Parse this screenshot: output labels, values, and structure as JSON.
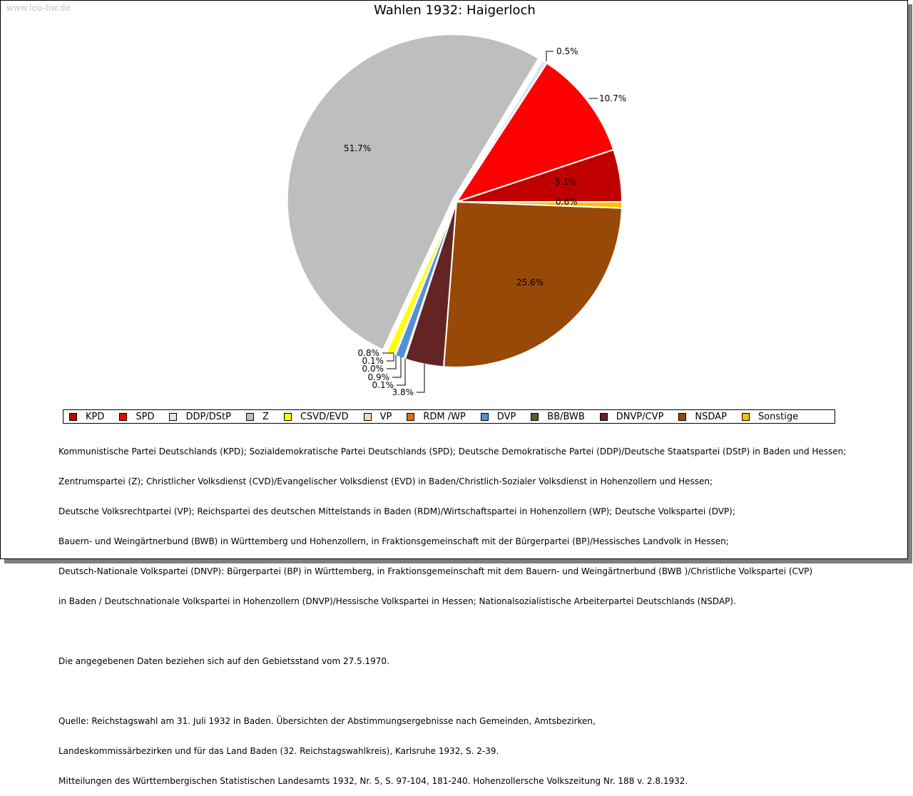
{
  "watermark": "www.leo-bw.de",
  "chart_data": {
    "type": "pie",
    "title": "Wahlen 1932: Haigerloch",
    "categories": [
      "KPD",
      "SPD",
      "DDP/DStP",
      "Z",
      "CSVD/EVD",
      "VP",
      "RDM /WP",
      "DVP",
      "BB/BWB",
      "DNVP/CVP",
      "NSDAP",
      "Sonstige"
    ],
    "values": [
      5.1,
      10.7,
      0.5,
      51.7,
      0.8,
      0.1,
      0.0,
      0.9,
      0.1,
      3.8,
      25.6,
      0.6
    ],
    "labels": [
      "5.1%",
      "10.7%",
      "0.5%",
      "51.7%",
      "0.8%",
      "0.1%",
      "0.0%",
      "0.9%",
      "0.1%",
      "3.8%",
      "25.6%",
      "0.6%"
    ],
    "colors": [
      "#c00000",
      "#ff0000",
      "#dce6f2",
      "#bebebe",
      "#ffff00",
      "#fcd5b5",
      "#e36c0a",
      "#558ed5",
      "#4f6228",
      "#632523",
      "#984807",
      "#ffc000"
    ],
    "legend_position": "bottom",
    "exploded": [
      "Z"
    ]
  },
  "notes": {
    "parties": [
      "Kommunistische Partei Deutschlands (KPD); Sozialdemokratische Partei Deutschlands (SPD); Deutsche Demokratische Partei (DDP)/Deutsche Staatspartei (DStP) in Baden und Hessen;",
      "Zentrumspartei (Z); Christlicher Volksdienst (CVD)/Evangelischer Volksdienst (EVD) in Baden/Christlich-Sozialer Volksdienst in Hohenzollern und Hessen;",
      "Deutsche Volksrechtpartei (VP); Reichspartei des deutschen Mittelstands in Baden (RDM)/Wirtschaftspartei in Hohenzollern (WP); Deutsche Volkspartei (DVP);",
      "Bauern- und Weingärtnerbund (BWB) in Württemberg und Hohenzollern, in Fraktionsgemeinschaft mit der Bürgerpartei (BP)/Hessisches Landvolk in Hessen;",
      "Deutsch-Nationale Volkspartei (DNVP): Bürgerpartei (BP) in Württemberg, in Fraktionsgemeinschaft mit dem Bauern- und Weingärtnerbund (BWB )/Christliche Volkspartei (CVP)",
      "in Baden / Deutschnationale Volkspartei in Hohenzollern (DNVP)/Hessische Volkspartei in Hessen; Nationalsozialistische Arbeiterpartei Deutschlands (NSDAP)."
    ],
    "territory": "Die angegebenen Daten beziehen sich auf den Gebietsstand vom 27.5.1970.",
    "source": [
      "Quelle: Reichstagswahl am 31. Juli 1932 in Baden. Übersichten der Abstimmungsergebnisse nach Gemeinden, Amtsbezirken,",
      "Landeskommissärbezirken und für das Land Baden (32. Reichstagswahlkreis), Karlsruhe 1932, S. 2-39.",
      "Mitteilungen des Württembergischen Statistischen Landesamts 1932, Nr. 5, S. 97-104, 181-240. Hohenzollersche Volkszeitung Nr. 188 v. 2.8.1932."
    ]
  }
}
